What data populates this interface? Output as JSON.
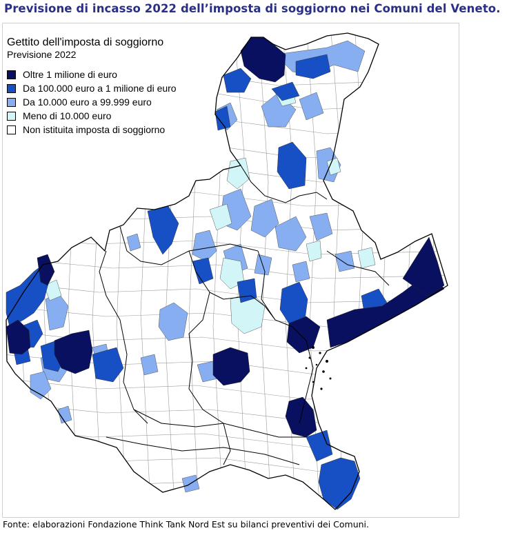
{
  "title": "Previsione di incasso 2022 dell’imposta di soggiorno nei Comuni del Veneto.",
  "legend": {
    "title": "Gettito dell'imposta di soggiorno",
    "subtitle": "Previsione 2022",
    "items": [
      {
        "label": "Oltre 1 milione di euro",
        "color": "#0a1060"
      },
      {
        "label": "Da 100.000 euro a 1 milione di euro",
        "color": "#1750c4"
      },
      {
        "label": "Da 10.000 euro a 99.999 euro",
        "color": "#86aef0"
      },
      {
        "label": "Meno di 10.000 euro",
        "color": "#d2f6f8"
      },
      {
        "label": "Non istituita imposta di soggiorno",
        "color": "#ffffff"
      }
    ]
  },
  "source": "Fonte: elaborazioni Fondazione Think Tank Nord Est su bilanci preventivi dei Comuni."
}
